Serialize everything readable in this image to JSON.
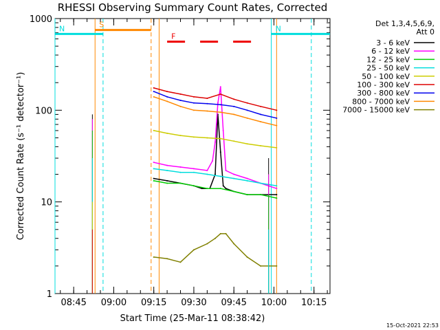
{
  "chart_data": {
    "type": "line",
    "title": "RHESSI Observing Summary Count Rates, Corrected",
    "xlabel": "Start Time (25-Mar-11 08:38:42)",
    "ylabel": "Corrected Count Rate (s⁻¹ detector⁻¹)",
    "timestamp": "15-Oct-2021 22:53",
    "y_scale": "log",
    "ylim": [
      1,
      1000
    ],
    "y_ticks": [
      {
        "value": 1,
        "label": "1"
      },
      {
        "value": 10,
        "label": "10"
      },
      {
        "value": 100,
        "label": "100"
      },
      {
        "value": 1000,
        "label": "1000"
      }
    ],
    "xlim": [
      "08:38",
      "10:21"
    ],
    "x_ticks": [
      "08:45",
      "09:00",
      "09:15",
      "09:30",
      "09:45",
      "10:00",
      "10:15"
    ],
    "grid": false,
    "legend": {
      "title": "Det 1,3,4,5,6,9,",
      "subtitle": "Att 0",
      "placement": "right"
    },
    "series": [
      {
        "name": "3 - 6 keV",
        "color": "#000000",
        "x": [
          "09:15",
          "09:20",
          "09:25",
          "09:30",
          "09:33",
          "09:36",
          "09:38",
          "09:39",
          "09:40",
          "09:41",
          "09:42",
          "09:45",
          "09:50",
          "09:55",
          "10:01"
        ],
        "values": [
          18,
          17,
          16,
          15,
          14,
          14,
          20,
          90,
          35,
          15,
          14,
          13,
          12,
          12,
          12
        ]
      },
      {
        "name": "6 - 12 keV",
        "color": "#ff00ff",
        "x": [
          "09:15",
          "09:20",
          "09:25",
          "09:30",
          "09:35",
          "09:37",
          "09:38",
          "09:39",
          "09:40",
          "09:41",
          "09:42",
          "09:45",
          "09:50",
          "09:55",
          "10:01"
        ],
        "values": [
          27,
          25,
          24,
          23,
          22,
          28,
          45,
          120,
          180,
          60,
          22,
          20,
          18,
          16,
          14
        ]
      },
      {
        "name": "12 - 25 keV",
        "color": "#00cc00",
        "x": [
          "09:15",
          "09:20",
          "09:25",
          "09:30",
          "09:35",
          "09:40",
          "09:45",
          "09:50",
          "09:55",
          "10:01"
        ],
        "values": [
          17,
          16,
          16,
          15,
          14,
          14,
          13,
          12,
          12,
          11
        ]
      },
      {
        "name": "25 - 50 keV",
        "color": "#00dddd",
        "x": [
          "09:15",
          "09:20",
          "09:25",
          "09:30",
          "09:35",
          "09:40",
          "09:45",
          "09:50",
          "09:55",
          "10:01"
        ],
        "values": [
          23,
          22,
          21,
          21,
          20,
          19,
          18,
          17,
          16,
          15
        ]
      },
      {
        "name": "50 - 100 keV",
        "color": "#cccc00",
        "x": [
          "09:15",
          "09:20",
          "09:25",
          "09:30",
          "09:35",
          "09:40",
          "09:45",
          "09:50",
          "09:55",
          "10:01"
        ],
        "values": [
          60,
          56,
          53,
          51,
          50,
          49,
          46,
          43,
          41,
          39
        ]
      },
      {
        "name": "100 - 300 keV",
        "color": "#dd0000",
        "x": [
          "09:15",
          "09:20",
          "09:25",
          "09:30",
          "09:35",
          "09:40",
          "09:45",
          "09:50",
          "09:55",
          "10:01"
        ],
        "values": [
          175,
          160,
          150,
          140,
          135,
          150,
          132,
          120,
          110,
          100
        ]
      },
      {
        "name": "300 - 800 keV",
        "color": "#0000ee",
        "x": [
          "09:15",
          "09:20",
          "09:25",
          "09:30",
          "09:35",
          "09:40",
          "09:45",
          "09:50",
          "09:55",
          "10:01"
        ],
        "values": [
          160,
          140,
          128,
          120,
          118,
          115,
          110,
          100,
          90,
          82
        ]
      },
      {
        "name": "800 - 7000 keV",
        "color": "#ff8800",
        "x": [
          "09:15",
          "09:20",
          "09:25",
          "09:30",
          "09:35",
          "09:40",
          "09:45",
          "09:50",
          "09:55",
          "10:01"
        ],
        "values": [
          140,
          125,
          110,
          100,
          98,
          95,
          90,
          82,
          75,
          68
        ]
      },
      {
        "name": "7000 - 15000 keV",
        "color": "#808000",
        "x": [
          "09:15",
          "09:20",
          "09:25",
          "09:30",
          "09:35",
          "09:38",
          "09:40",
          "09:42",
          "09:45",
          "09:50",
          "09:55",
          "10:01"
        ],
        "values": [
          2.5,
          2.4,
          2.2,
          3,
          3.5,
          4,
          4.5,
          4.5,
          3.5,
          2.5,
          2,
          2
        ]
      }
    ],
    "spikes": [
      {
        "time": "08:52",
        "values": [
          90,
          80,
          60,
          30,
          10,
          5
        ]
      },
      {
        "time": "09:58",
        "values": [
          30,
          20,
          12,
          5
        ]
      }
    ],
    "state_flags": [
      {
        "label": "S",
        "color": "#ff8800",
        "start": "08:53",
        "end": "09:14",
        "level": 750
      },
      {
        "label": "N",
        "color": "#00dddd",
        "start": "08:38",
        "end": "08:56",
        "level": 680
      },
      {
        "label": "N",
        "color": "#00dddd",
        "start": "09:59",
        "end": "10:21",
        "level": 680
      },
      {
        "label": "F",
        "color": "#ee0000",
        "start": "09:20",
        "end": "09:55",
        "level": 560,
        "dashed": true
      }
    ],
    "interval_lines": [
      {
        "time": "08:38",
        "color": "#00dddd",
        "dashed": false
      },
      {
        "time": "08:56",
        "color": "#00dddd",
        "dashed": true
      },
      {
        "time": "08:53",
        "color": "#ff8800",
        "dashed": false
      },
      {
        "time": "09:14",
        "color": "#ff8800",
        "dashed": true
      },
      {
        "time": "09:17",
        "color": "#ff8800",
        "dashed": false
      },
      {
        "time": "09:59",
        "color": "#00dddd",
        "dashed": false
      },
      {
        "time": "10:01",
        "color": "#ff8800",
        "dashed": false
      },
      {
        "time": "10:14",
        "color": "#00dddd",
        "dashed": true
      }
    ]
  }
}
